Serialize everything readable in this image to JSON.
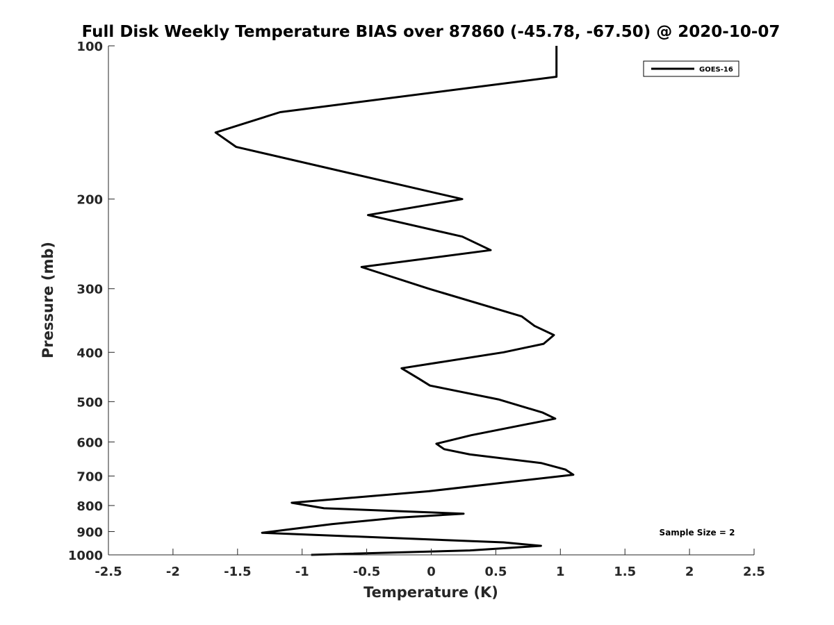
{
  "chart_data": {
    "type": "line",
    "title": "Full Disk Weekly Temperature BIAS over 87860 (-45.78, -67.50) @ 2020-10-07",
    "xlabel": "Temperature (K)",
    "ylabel": "Pressure (mb)",
    "xlim": [
      -2.5,
      2.5
    ],
    "ylim": [
      100,
      1000
    ],
    "yscale": "log",
    "y_reversed": true,
    "x_ticks": [
      "-2.5",
      "-2",
      "-1.5",
      "-1",
      "-0.5",
      "0",
      "0.5",
      "1",
      "1.5",
      "2",
      "2.5"
    ],
    "y_ticks": [
      "100",
      "200",
      "300",
      "400",
      "500",
      "600",
      "700",
      "800",
      "900",
      "1000"
    ],
    "grid": false,
    "legend_position": "top-right",
    "annotation": "Sample Size = 2",
    "series": [
      {
        "name": "GOES-16",
        "color": "#000000",
        "x": [
          0.97,
          0.97,
          -1.17,
          -1.67,
          -1.51,
          0.24,
          -0.49,
          0.24,
          0.46,
          -0.54,
          -0.02,
          0.7,
          0.8,
          0.95,
          0.87,
          0.56,
          -0.23,
          -0.1,
          -0.01,
          0.52,
          0.86,
          0.96,
          0.31,
          0.04,
          0.1,
          0.3,
          0.85,
          1.04,
          1.1,
          0.59,
          -0.02,
          -1.08,
          -0.83,
          0.25,
          -0.25,
          -0.77,
          -1.08,
          -1.31,
          0.56,
          0.85,
          0.3,
          -0.93
        ],
        "y": [
          100,
          115,
          135,
          148,
          158,
          200,
          215,
          237,
          252,
          272,
          300,
          340,
          355,
          370,
          385,
          400,
          430,
          450,
          465,
          495,
          525,
          540,
          582,
          605,
          620,
          635,
          660,
          680,
          696,
          720,
          750,
          790,
          810,
          830,
          845,
          870,
          890,
          905,
          945,
          960,
          980,
          1000
        ]
      }
    ]
  }
}
